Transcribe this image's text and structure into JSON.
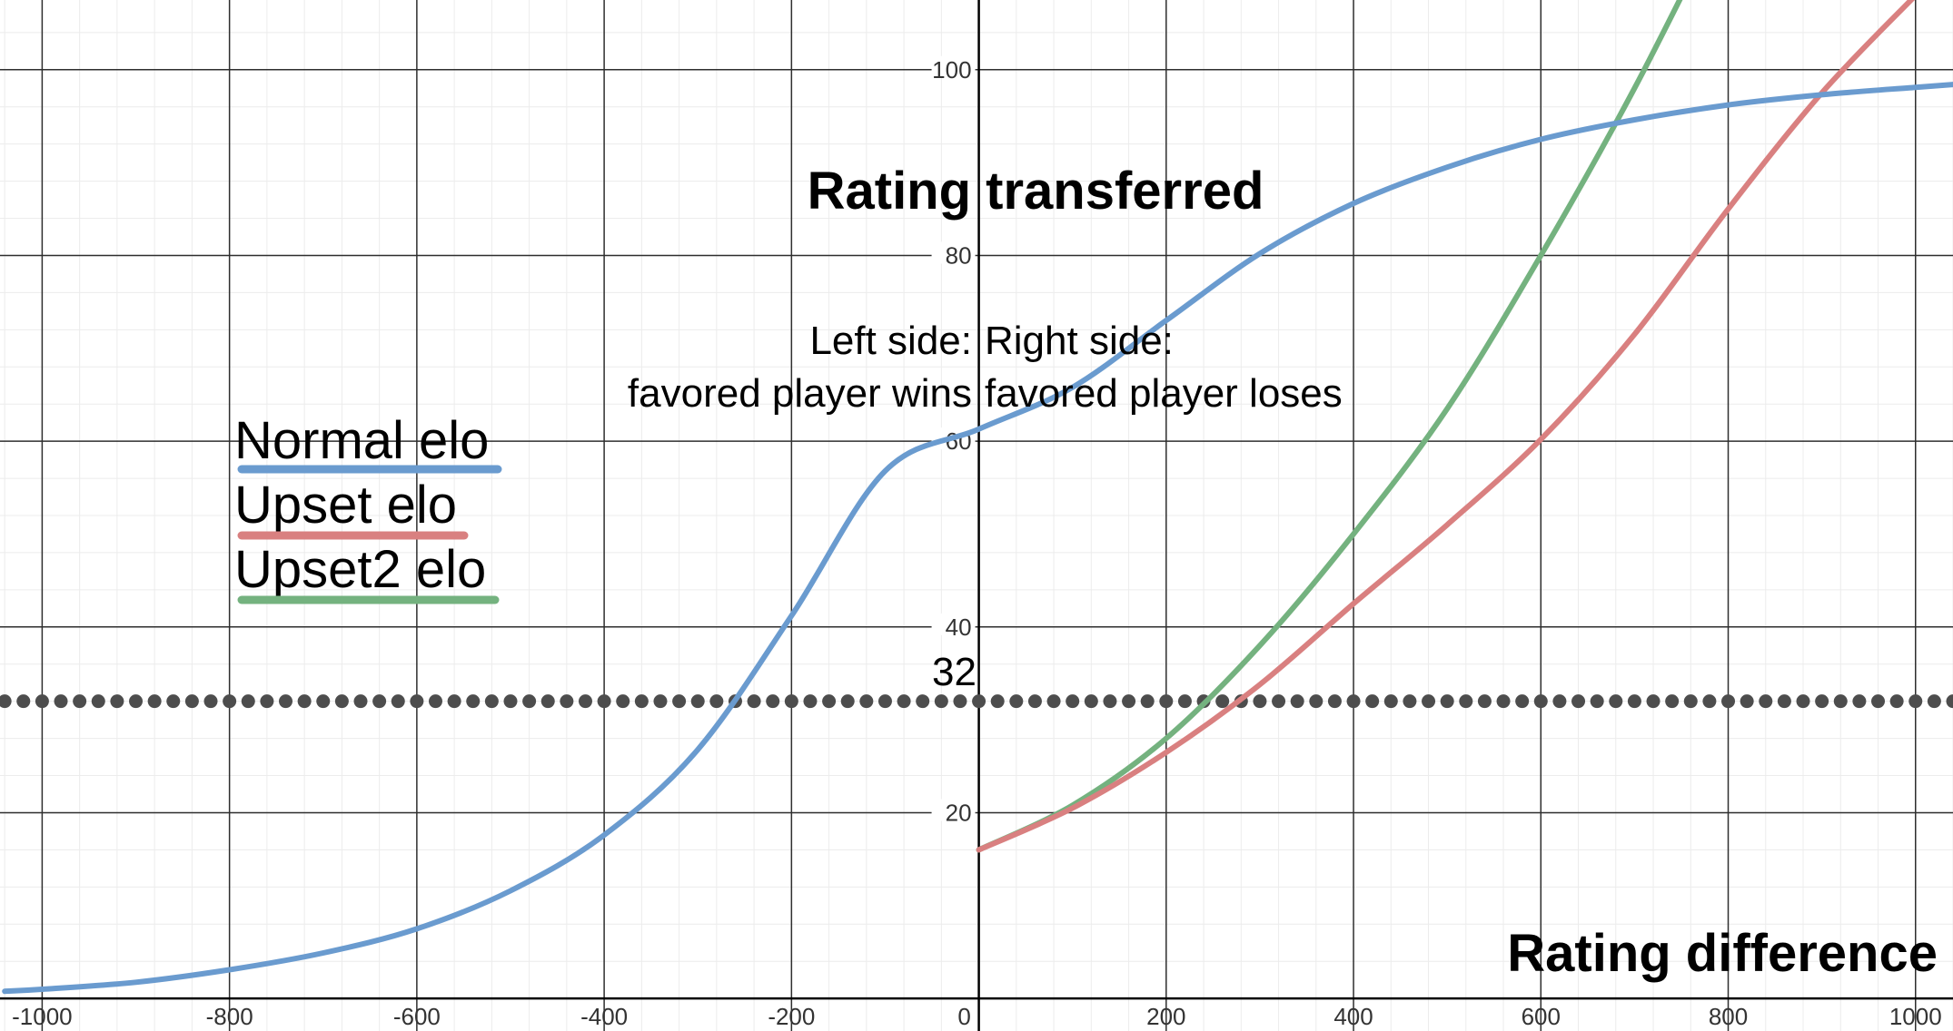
{
  "chart_data": {
    "type": "line",
    "title": "Rating transferred",
    "xlabel": "Rating difference",
    "ylabel": "",
    "xlim": [
      -1045,
      1040
    ],
    "ylim": [
      -3.5,
      107.5
    ],
    "x_ticks": [
      -1000,
      -800,
      -600,
      -400,
      -200,
      0,
      200,
      400,
      600,
      800,
      1000
    ],
    "x_tick_labels": [
      "-1000",
      "-800",
      "-600",
      "-400",
      "-200",
      "0",
      "200",
      "400",
      "600",
      "800",
      "1000"
    ],
    "y_ticks": [
      20,
      40,
      60,
      80,
      100
    ],
    "y_tick_labels": [
      "20",
      "40",
      "60",
      "80",
      "100"
    ],
    "grid": true,
    "legend_position": "upper-left",
    "annotations": {
      "left_line1": "Left side:",
      "left_line2": "favored player wins",
      "right_line1": "Right side:",
      "right_line2": "favored player loses",
      "reference_label": "32"
    },
    "reference_line": {
      "y": 32,
      "style": "dotted",
      "color": "#4d4d4d"
    },
    "x": [
      -1040,
      -1000,
      -900,
      -800,
      -700,
      -600,
      -500,
      -400,
      -300,
      -200,
      -100,
      0,
      100,
      200,
      300,
      400,
      500,
      600,
      700,
      800,
      900,
      1000,
      1040
    ],
    "series": [
      {
        "name": "Normal elo",
        "color": "#6a9bcf",
        "values": [
          0.78,
          0.99,
          1.75,
          3.1,
          4.9,
          7.5,
          11.6,
          17.6,
          26.8,
          41.2,
          56.8,
          61.3,
          65.8,
          73.0,
          80.2,
          85.6,
          89.5,
          92.5,
          94.6,
          96.2,
          97.3,
          98.1,
          98.4
        ]
      },
      {
        "name": "Upset elo",
        "color": "#d98080",
        "values": [
          null,
          null,
          null,
          null,
          null,
          null,
          null,
          null,
          null,
          null,
          null,
          16.0,
          20.5,
          26.5,
          33.8,
          42.5,
          51.0,
          60.2,
          71.5,
          85.0,
          97.5,
          108.0,
          null
        ]
      },
      {
        "name": "Upset2 elo",
        "color": "#74b27f",
        "values": [
          null,
          null,
          null,
          null,
          null,
          null,
          null,
          null,
          null,
          null,
          null,
          16.0,
          20.8,
          28.0,
          38.0,
          50.0,
          63.5,
          80.0,
          98.0,
          118.0,
          null,
          null,
          null
        ]
      }
    ]
  }
}
